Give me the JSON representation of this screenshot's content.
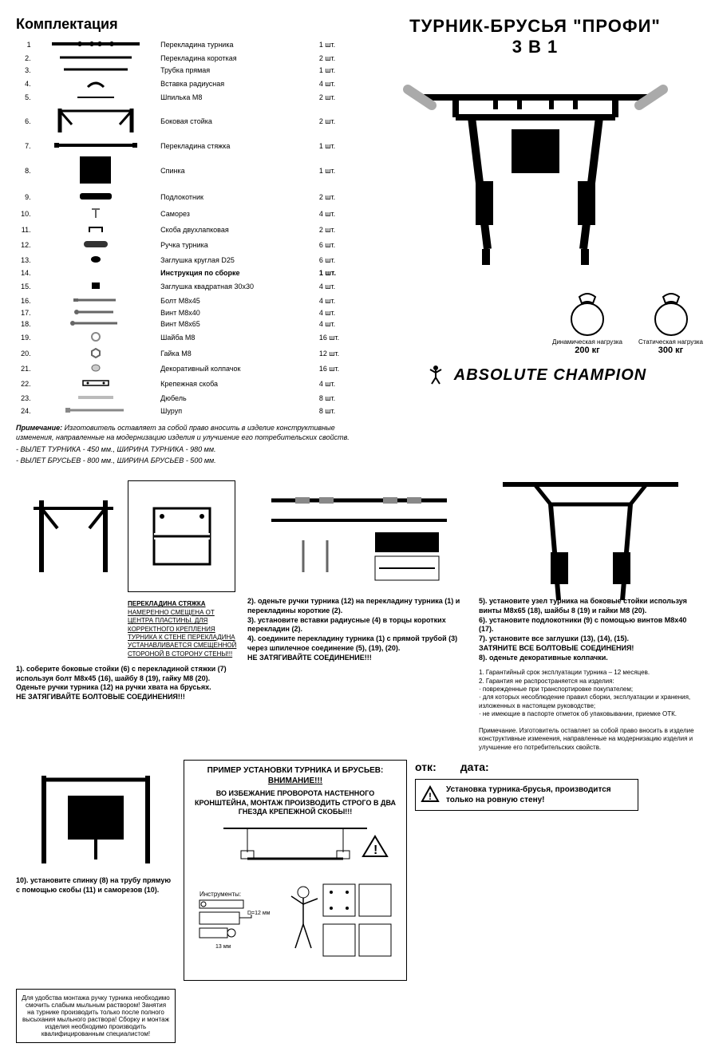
{
  "title_main": "ТУРНИК-БРУСЬЯ \"ПРОФИ\"",
  "title_sub": "3 В 1",
  "section_parts": "Комплектация",
  "parts": [
    {
      "n": "1",
      "name": "Перекладина турника",
      "qty": "1 шт."
    },
    {
      "n": "2.",
      "name": "Перекладина короткая",
      "qty": "2 шт."
    },
    {
      "n": "3.",
      "name": "Трубка прямая",
      "qty": "1 шт."
    },
    {
      "n": "4.",
      "name": "Вставка радиусная",
      "qty": "4 шт."
    },
    {
      "n": "5.",
      "name": "Шпилька М8",
      "qty": "2 шт."
    },
    {
      "n": "6.",
      "name": "Боковая стойка",
      "qty": "2 шт."
    },
    {
      "n": "7.",
      "name": "Перекладина стяжка",
      "qty": "1 шт."
    },
    {
      "n": "8.",
      "name": "Спинка",
      "qty": "1 шт."
    },
    {
      "n": "9.",
      "name": "Подлокотник",
      "qty": "2 шт."
    },
    {
      "n": "10.",
      "name": "Саморез",
      "qty": "4 шт."
    },
    {
      "n": "11.",
      "name": "Скоба двухлапковая",
      "qty": "2 шт."
    },
    {
      "n": "12.",
      "name": "Ручка турника",
      "qty": "6 шт."
    },
    {
      "n": "13.",
      "name": "Заглушка круглая D25",
      "qty": "6 шт."
    },
    {
      "n": "14.",
      "name": "Инструкция по сборке",
      "qty": "1 шт."
    },
    {
      "n": "15.",
      "name": "Заглушка квадратная 30х30",
      "qty": "4 шт."
    },
    {
      "n": "16.",
      "name": "Болт М8х45",
      "qty": "4 шт."
    },
    {
      "n": "17.",
      "name": "Винт М8х40",
      "qty": "4 шт."
    },
    {
      "n": "18.",
      "name": "Винт М8х65",
      "qty": "4 шт."
    },
    {
      "n": "19.",
      "name": "Шайба М8",
      "qty": "16 шт."
    },
    {
      "n": "20.",
      "name": "Гайка М8",
      "qty": "12 шт."
    },
    {
      "n": "21.",
      "name": "Декоративный колпачок",
      "qty": "16 шт."
    },
    {
      "n": "22.",
      "name": "Крепежная скоба",
      "qty": "4 шт."
    },
    {
      "n": "23.",
      "name": "Дюбель",
      "qty": "8 шт."
    },
    {
      "n": "24.",
      "name": "Шуруп",
      "qty": "8 шт."
    }
  ],
  "note_label": "Примечание:",
  "note_text": " Изготовитель оставляет за собой право вносить в изделие конструктивные изменения, направленные на модернизацию изделия и улучшение его потребительских свойств.",
  "dim1": "- ВЫЛЕТ ТУРНИКА - 450 мм., ШИРИНА ТУРНИКА - 980 мм.",
  "dim2": "- ВЫЛЕТ БРУСЬЕВ - 800 мм., ШИРИНА БРУСЬЕВ - 500 мм.",
  "weight1_label": "Динамическая нагрузка",
  "weight1_val": "200 кг",
  "weight2_label": "Статическая нагрузка",
  "weight2_val": "300 кг",
  "brand": "ABSOLUTE CHAMPION",
  "step1_t": "1). соберите  боковые стойки (6) с перекладиной стяжки (7) используя болт М8х45 (16), шайбу 8 (19), гайку М8 (20).",
  "step1_t2": "Оденьте ручки турника (12) на ручки хвата на брусьях.",
  "step1_t3": "НЕ ЗАТЯГИВАЙТЕ БОЛТОВЫЕ СОЕДИНЕНИЯ!!!",
  "callout_title": "ПЕРЕКЛАДИНА СТЯЖКА",
  "callout_text": "НАМЕРЕННО СМЕЩЕНА ОТ ЦЕНТРА ПЛАСТИНЫ. ДЛЯ КОРРЕКТНОГО КРЕПЛЕНИЯ ТУРНИКА К СТЕНЕ ПЕРЕКЛАДИНА УСТАНАВЛИВАЕТСЯ СМЕЩЕННОЙ СТОРОНОЙ В СТОРОНУ СТЕНЫ!!!",
  "step2_t": "2). оденьте ручки турника (12) на перекладину турника (1) и перекладины короткие (2).",
  "step3_t": "3). установите вставки радиусные (4) в торцы коротких перекладин (2).",
  "step4_t": "4). соедините перекладину турника (1) с прямой трубой (3) через шпилечное соединение (5), (19), (20).",
  "step4_w": "НЕ ЗАТЯГИВАЙТЕ СОЕДИНЕНИЕ!!!",
  "step5_t": "5). установите узел турника на боковые стойки используя винты М8х65 (18), шайбы 8 (19) и гайки М8 (20).",
  "step6_t": "6). установите подлокотники (9) с помощью винтов М8х40 (17).",
  "step7_t": "7). установите все заглушки (13), (14), (15).",
  "step7_w": "ЗАТЯНИТЕ ВСЕ БОЛТОВЫЕ СОЕДИНЕНИЯ!",
  "step8_t": "8). оденьте декоративные колпачки.",
  "step10_t": "10). установите спинку (8) на трубу прямую с помощью скобы (11) и саморезов (10).",
  "warnbox_title": "ПРИМЕР УСТАНОВКИ ТУРНИКА И БРУСЬЕВ:",
  "warnbox_sub": "ВНИМАНИЕ!!!",
  "warnbox_text": "ВО ИЗБЕЖАНИЕ ПРОВОРОТА НАСТЕННОГО КРОНШТЕЙНА, МОНТАЖ ПРОИЗВОДИТЬ СТРОГО В ДВА ГНЕЗДА КРЕПЕЖНОЙ СКОБЫ!!!",
  "tools_label": "Инструменты:",
  "d12": "D=12 мм",
  "mm13": "13 мм",
  "smallbox_text": "Для удобства монтажа ручку турника необходимо смочить слабым мыльным раствором! Занятия на турнике производить только после полного высыхания мыльного раствора! Сборку и монтаж изделия необходимо производить квалифицированным специалистом!",
  "warranty1": "1. Гарантийный срок эксплуатации турника – 12 месяцев.",
  "warranty2": "2. Гарантия не распространяется на изделия:",
  "warranty2a": "· поврежденные при транспортировке покупателем;",
  "warranty2b": "· для которых несоблюдение правил сборки, эксплуатации и хранения, изложенных в настоящем руководстве;",
  "warranty2c": "· не имеющие в паспорте отметок об упаковывании, приемке ОТК.",
  "warranty_note": "Примечание. Изготовитель оставляет за собой право вносить в изделие конструктивные изменения, направленные на модернизацию изделия и улучшение его потребительских свойств.",
  "otk": "отк:",
  "date": "дата:",
  "install_warn": "Установка турника-брусья, производится только на ровную стену!"
}
